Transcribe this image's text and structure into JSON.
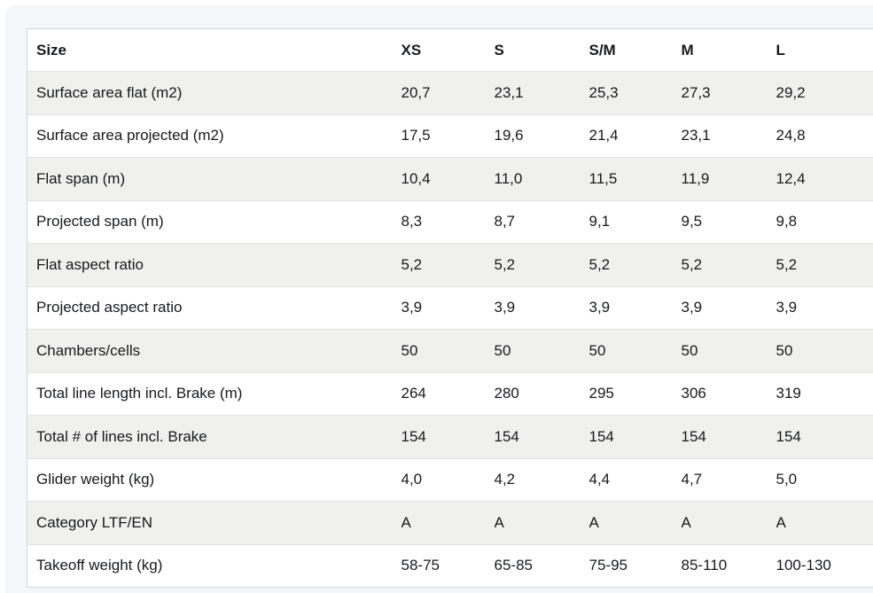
{
  "page": {
    "background_color": "#ffffff",
    "panel_background_color": "#f5f6f8"
  },
  "table": {
    "columns": [
      "Size",
      "XS",
      "S",
      "S/M",
      "M",
      "L"
    ],
    "rows": [
      {
        "label": "Surface area flat (m2)",
        "values": [
          "20,7",
          "23,1",
          "25,3",
          "27,3",
          "29,2"
        ]
      },
      {
        "label": "Surface area projected (m2)",
        "values": [
          "17,5",
          "19,6",
          "21,4",
          "23,1",
          "24,8"
        ]
      },
      {
        "label": "Flat span (m)",
        "values": [
          "10,4",
          "11,0",
          "11,5",
          "11,9",
          "12,4"
        ]
      },
      {
        "label": "Projected span (m)",
        "values": [
          "8,3",
          "8,7",
          "9,1",
          "9,5",
          "9,8"
        ]
      },
      {
        "label": "Flat aspect ratio",
        "values": [
          "5,2",
          "5,2",
          "5,2",
          "5,2",
          "5,2"
        ]
      },
      {
        "label": "Projected aspect ratio",
        "values": [
          "3,9",
          "3,9",
          "3,9",
          "3,9",
          "3,9"
        ]
      },
      {
        "label": "Chambers/cells",
        "values": [
          "50",
          "50",
          "50",
          "50",
          "50"
        ]
      },
      {
        "label": "Total line length incl. Brake (m)",
        "values": [
          "264",
          "280",
          "295",
          "306",
          "319"
        ]
      },
      {
        "label": "Total # of lines incl. Brake",
        "values": [
          "154",
          "154",
          "154",
          "154",
          "154"
        ]
      },
      {
        "label": "Glider weight (kg)",
        "values": [
          "4,0",
          "4,2",
          "4,4",
          "4,7",
          "5,0"
        ]
      },
      {
        "label": "Category LTF/EN",
        "values": [
          "A",
          "A",
          "A",
          "A",
          "A"
        ]
      },
      {
        "label": "Takeoff weight (kg)",
        "values": [
          "58-75",
          "65-85",
          "75-95",
          "85-110",
          "100-130"
        ]
      }
    ],
    "striped_row_color": "#f0f0ee",
    "outer_border_color": "#d3d5d7",
    "divider_color": "#e1e1df",
    "text_color": "#17191c"
  }
}
